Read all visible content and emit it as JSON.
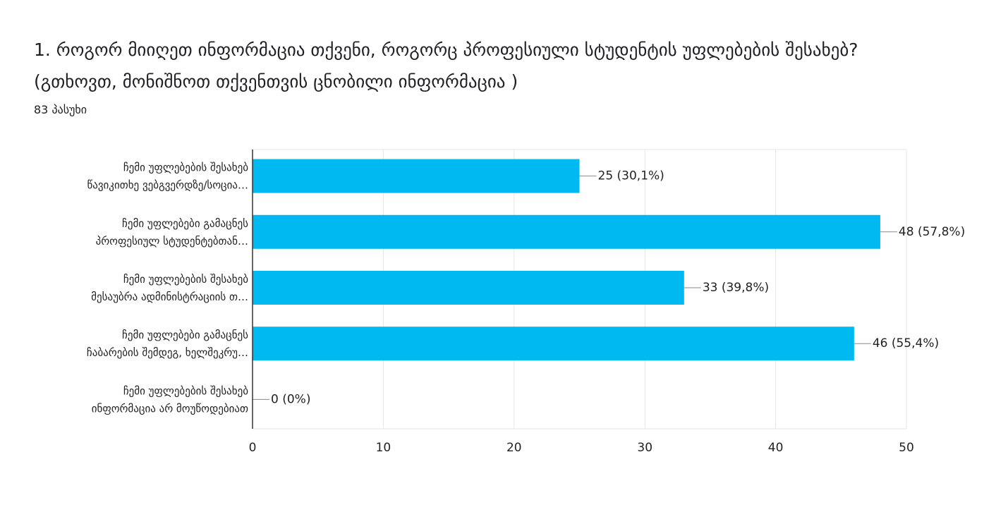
{
  "chart_data": {
    "type": "bar",
    "orientation": "horizontal",
    "title": "1. როგორ მიიღეთ ინფორმაცია თქვენი, როგორც პროფესიული სტუდენტის უფლებების შესახებ? (გთხოვთ, მონიშნოთ თქვენთვის ცნობილი ინფორმაცია )",
    "subtitle": "83 პასუხი",
    "categories": [
      [
        "ჩემი უფლებების შესახებ",
        "წავიკითხე ვებგვერდზე/სოცია…"
      ],
      [
        "ჩემი უფლებები გამაცნეს",
        "პროფესიულ სტუდენტებთან…"
      ],
      [
        "ჩემი უფლებების შესახებ",
        "მესაუბრა ადმინისტრაციის თ…"
      ],
      [
        "ჩემი უფლებები გამაცნეს",
        "ჩაბარების შემდეგ, ხელშეკრუ…"
      ],
      [
        "ჩემი უფლებების შესახებ",
        "ინფორმაცია არ მოუწოდებიათ"
      ]
    ],
    "values": [
      25,
      48,
      33,
      46,
      0
    ],
    "value_labels": [
      "25 (30,1%)",
      "48 (57,8%)",
      "33 (39,8%)",
      "46 (55,4%)",
      "0 (0%)"
    ],
    "color": "#00b9f1",
    "xlim": [
      0,
      50
    ],
    "xticks": [
      0,
      10,
      20,
      30,
      40,
      50
    ],
    "grid": true
  }
}
